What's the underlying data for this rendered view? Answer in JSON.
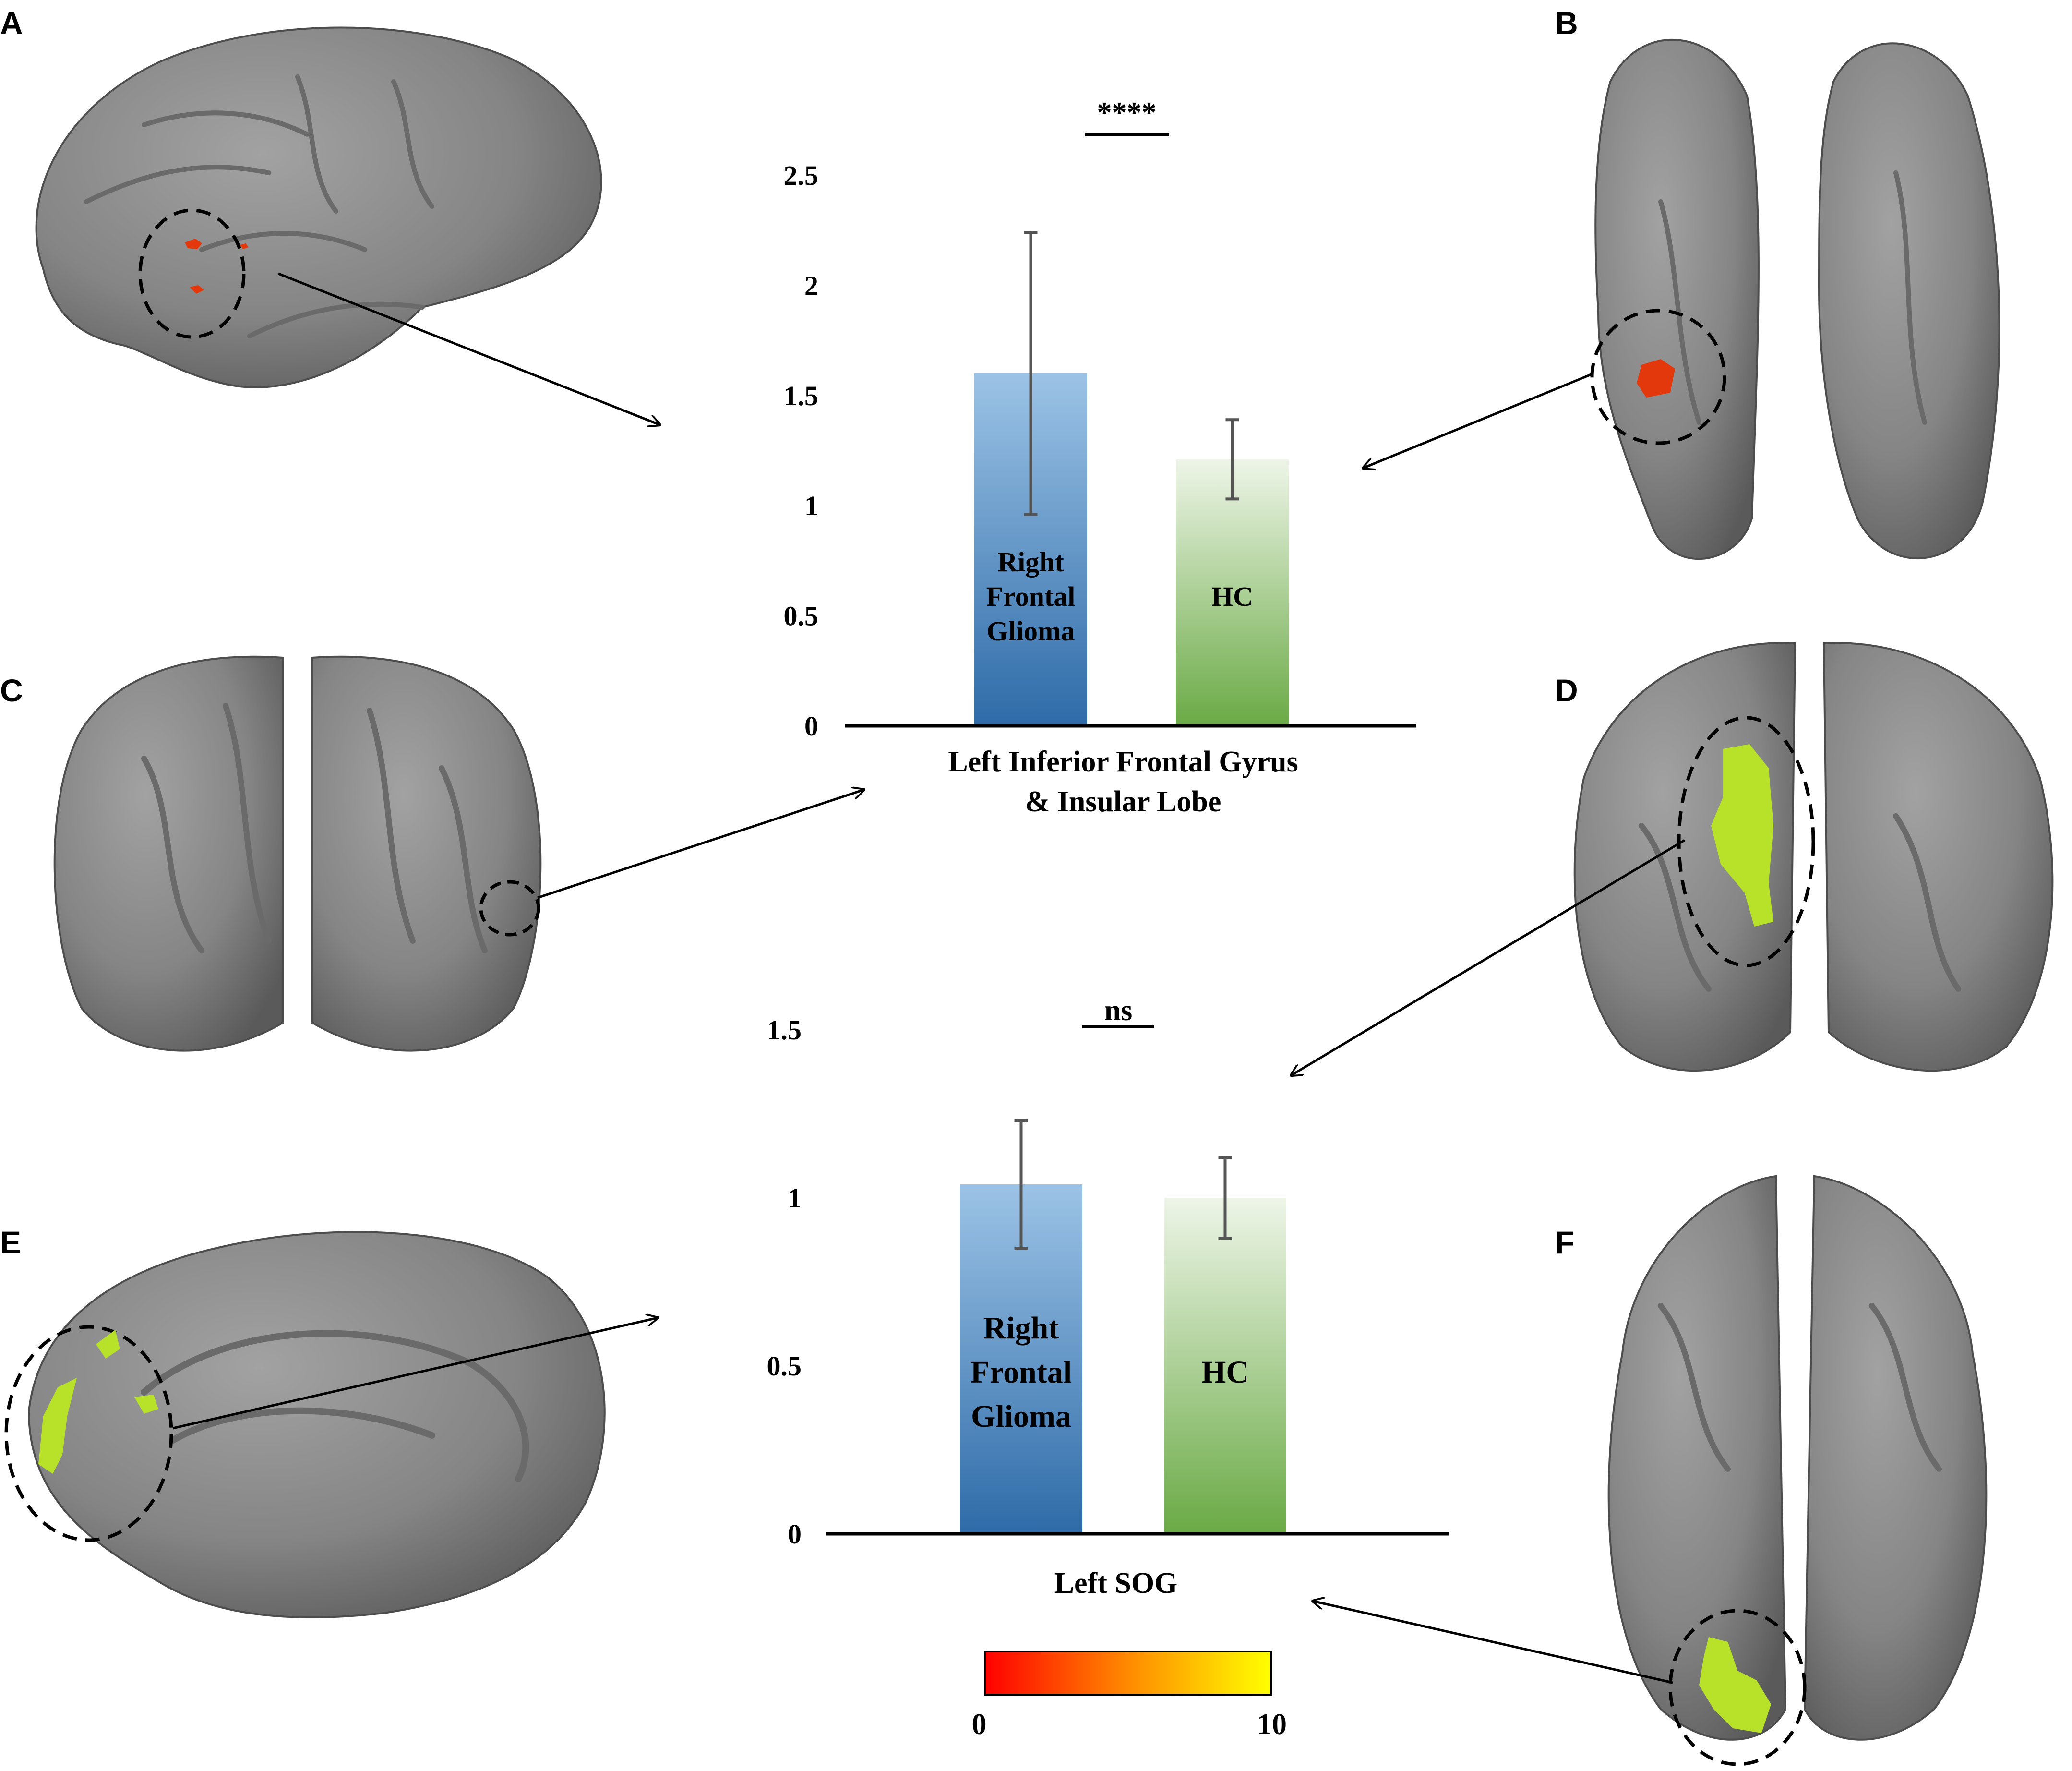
{
  "panel_labels": [
    "A",
    "B",
    "C",
    "D",
    "E",
    "F"
  ],
  "colors": {
    "brain_surface": "#8a8a8a",
    "activation_red": "#e2380c",
    "activation_green": "#b8e22a",
    "bar_patient_top": "#9cc3e6",
    "bar_patient_bottom": "#2e6ba8",
    "bar_hc_top": "#e8f2e0",
    "bar_hc_bottom": "#6aaa45",
    "colorbar_start": "#ff0000",
    "colorbar_end": "#ffff00"
  },
  "icons": [
    "brain-lateral-view",
    "brain-ventral-view",
    "brain-frontal-view",
    "brain-posterior-view",
    "brain-medial-view",
    "brain-dorsal-view"
  ],
  "colorbar": {
    "min_label": "0",
    "max_label": "10"
  },
  "chart_data": [
    {
      "type": "bar",
      "categories": [
        "Right Frontal Glioma",
        "HC"
      ],
      "bar_labels": [
        [
          "Right",
          "Frontal",
          "Glioma"
        ],
        [
          "HC"
        ]
      ],
      "values": [
        1.6,
        1.21
      ],
      "error": [
        0.64,
        0.18
      ],
      "ylim": [
        0,
        2.5
      ],
      "yticks": [
        "0",
        "0.5",
        "1",
        "1.5",
        "2",
        "2.5"
      ],
      "xlabel_lines": [
        "Left Inferior Frontal Gyrus",
        "& Insular Lobe"
      ],
      "significance": "****"
    },
    {
      "type": "bar",
      "categories": [
        "Right Frontal Glioma",
        "HC"
      ],
      "bar_labels": [
        [
          "Right",
          "Frontal",
          "Glioma"
        ],
        [
          "HC"
        ]
      ],
      "values": [
        1.04,
        1.0
      ],
      "error": [
        0.19,
        0.12
      ],
      "ylim": [
        0,
        1.5
      ],
      "yticks": [
        "0",
        "0.5",
        "1",
        "1.5"
      ],
      "xlabel_lines": [
        "Left SOG"
      ],
      "significance": "ns"
    }
  ]
}
